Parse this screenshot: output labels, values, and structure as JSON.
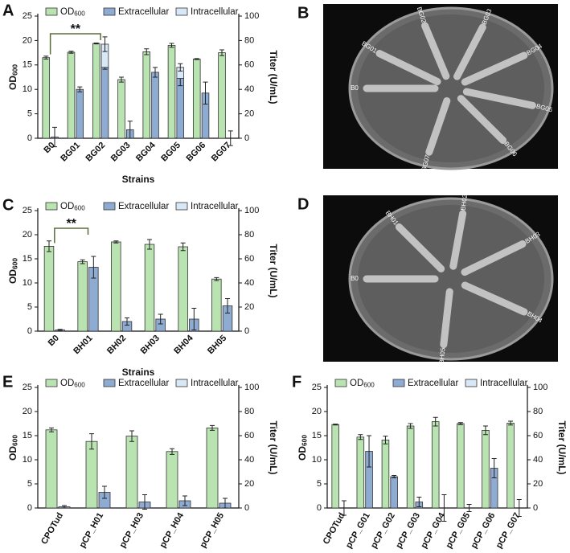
{
  "chart_data": [
    {
      "type": "bar",
      "panel": "A",
      "xlabel": "Strains",
      "ylabel": [
        "OD",
        "600"
      ],
      "y2label": "Titer (U/mL)",
      "annotation": "**",
      "categories": [
        "B0",
        "BG01",
        "BG02",
        "BG03",
        "BG04",
        "BG05",
        "BG06",
        "BG07"
      ],
      "ylim": [
        0,
        25
      ],
      "yticks": [
        0,
        5,
        10,
        15,
        20,
        25
      ],
      "y2lim": [
        0,
        100
      ],
      "y2ticks": [
        0,
        20,
        40,
        60,
        80,
        100
      ],
      "series": [
        {
          "name": [
            "OD",
            "600"
          ],
          "color": "#b9e3b1",
          "axis": "y",
          "values": [
            16.5,
            17.6,
            19.4,
            12,
            17.7,
            19,
            16.2,
            17.5
          ],
          "errors": [
            0.3,
            0.2,
            0.1,
            0.5,
            0.6,
            0.4,
            0.1,
            0.6
          ]
        },
        {
          "name": "Extracellular",
          "color": "#8eabd1",
          "axis": "y2",
          "values": [
            1,
            40,
            58,
            7,
            54,
            49,
            37,
            0
          ],
          "errors": [
            8,
            2,
            1.5,
            7,
            4,
            6,
            9,
            6
          ]
        },
        {
          "name": "Intracellular",
          "color": "#d9e8f7",
          "axis": "y2",
          "stacked": true,
          "values": [
            0,
            0,
            19,
            0,
            0,
            9,
            0,
            0
          ],
          "errors": [
            0,
            0,
            6,
            0,
            0,
            3,
            0,
            0
          ]
        }
      ]
    },
    {
      "type": "bar",
      "panel": "C",
      "xlabel": "Strains",
      "ylabel": [
        "OD",
        "600"
      ],
      "y2label": "Titer (U/mL)",
      "annotation": "**",
      "categories": [
        "B0",
        "BH01",
        "BH02",
        "BH03",
        "BH04",
        "BH05"
      ],
      "ylim": [
        0,
        25
      ],
      "yticks": [
        0,
        5,
        10,
        15,
        20,
        25
      ],
      "y2lim": [
        0,
        100
      ],
      "y2ticks": [
        0,
        20,
        40,
        60,
        80,
        100
      ],
      "series": [
        {
          "name": [
            "OD",
            "600"
          ],
          "color": "#b9e3b1",
          "axis": "y",
          "values": [
            17.6,
            14.4,
            18.5,
            18,
            17.5,
            10.8
          ],
          "errors": [
            1.1,
            0.4,
            0.2,
            1,
            0.8,
            0.3
          ]
        },
        {
          "name": "Extracellular",
          "color": "#8eabd1",
          "axis": "y2",
          "values": [
            1,
            53,
            8,
            10,
            10,
            21
          ],
          "errors": [
            0.5,
            9,
            3,
            4,
            9,
            6
          ]
        },
        {
          "name": "Intracellular",
          "color": "#d9e8f7",
          "axis": "y2",
          "stacked": true,
          "values": [
            0,
            0,
            0,
            0,
            0,
            0
          ],
          "errors": [
            0,
            0,
            0,
            0,
            0,
            0
          ]
        }
      ]
    },
    {
      "type": "bar",
      "panel": "E",
      "ylabel": [
        "OD",
        "600"
      ],
      "y2label": "Titer (U/mL)",
      "categories": [
        "CPOTud",
        "pCP_H01",
        "pCP_H03",
        "pCP_H04",
        "pCP_H05"
      ],
      "ylim": [
        0,
        25
      ],
      "yticks": [
        0,
        5,
        10,
        15,
        20,
        25
      ],
      "y2lim": [
        0,
        100
      ],
      "y2ticks": [
        0,
        20,
        40,
        60,
        80,
        100
      ],
      "series": [
        {
          "name": [
            "OD",
            "600"
          ],
          "color": "#b9e3b1",
          "axis": "y",
          "values": [
            16.2,
            13.8,
            14.9,
            11.7,
            16.6
          ],
          "errors": [
            0.4,
            1.6,
            1.1,
            0.6,
            0.5
          ]
        },
        {
          "name": "Extracellular",
          "color": "#8eabd1",
          "axis": "y2",
          "values": [
            1,
            13,
            5,
            6,
            4
          ],
          "errors": [
            1,
            5,
            6,
            4,
            4
          ]
        },
        {
          "name": "Intracellular",
          "color": "#d9e8f7",
          "axis": "y2",
          "stacked": true,
          "values": [
            0,
            0,
            0,
            0,
            0
          ],
          "errors": [
            0,
            0,
            0,
            0,
            0
          ]
        }
      ]
    },
    {
      "type": "bar",
      "panel": "F",
      "ylabel": [
        "OD",
        "600"
      ],
      "y2label": "Titer (U/mL)",
      "categories": [
        "CPOTud",
        "pCP_G01",
        "pCP_G02",
        "pCP_G03",
        "pCP_G04",
        "pCP_G05",
        "pCP_G06",
        "pCP_G07"
      ],
      "ylim": [
        0,
        25
      ],
      "yticks": [
        0,
        5,
        10,
        15,
        20,
        25
      ],
      "y2lim": [
        0,
        100
      ],
      "y2ticks": [
        0,
        20,
        40,
        60,
        80,
        100
      ],
      "series": [
        {
          "name": [
            "OD",
            "600"
          ],
          "color": "#b9e3b1",
          "axis": "y",
          "values": [
            17.3,
            14.7,
            14.1,
            17,
            17.9,
            17.5,
            16.1,
            17.6
          ],
          "errors": [
            0.1,
            0.5,
            0.8,
            0.5,
            0.9,
            0.2,
            0.9,
            0.4
          ]
        },
        {
          "name": "Extracellular",
          "color": "#8eabd1",
          "axis": "y2",
          "values": [
            0,
            47,
            26,
            5,
            0,
            0,
            33,
            0
          ],
          "errors": [
            6,
            13,
            1,
            4,
            11,
            3,
            8,
            7
          ]
        },
        {
          "name": "Intracellular",
          "color": "#d9e8f7",
          "axis": "y2",
          "stacked": true,
          "values": [
            0,
            0,
            0,
            0,
            0,
            0,
            0,
            0
          ],
          "errors": [
            0,
            0,
            0,
            0,
            0,
            0,
            0,
            0
          ]
        }
      ]
    }
  ],
  "plates": [
    {
      "panel": "B",
      "labels": [
        "B0",
        "BG01",
        "BG02",
        "BG03",
        "BG04",
        "BG05",
        "BG06",
        "BG07"
      ]
    },
    {
      "panel": "D",
      "labels": [
        "B0",
        "BH01",
        "BH02",
        "BH03",
        "BH04",
        "BH05"
      ]
    }
  ]
}
